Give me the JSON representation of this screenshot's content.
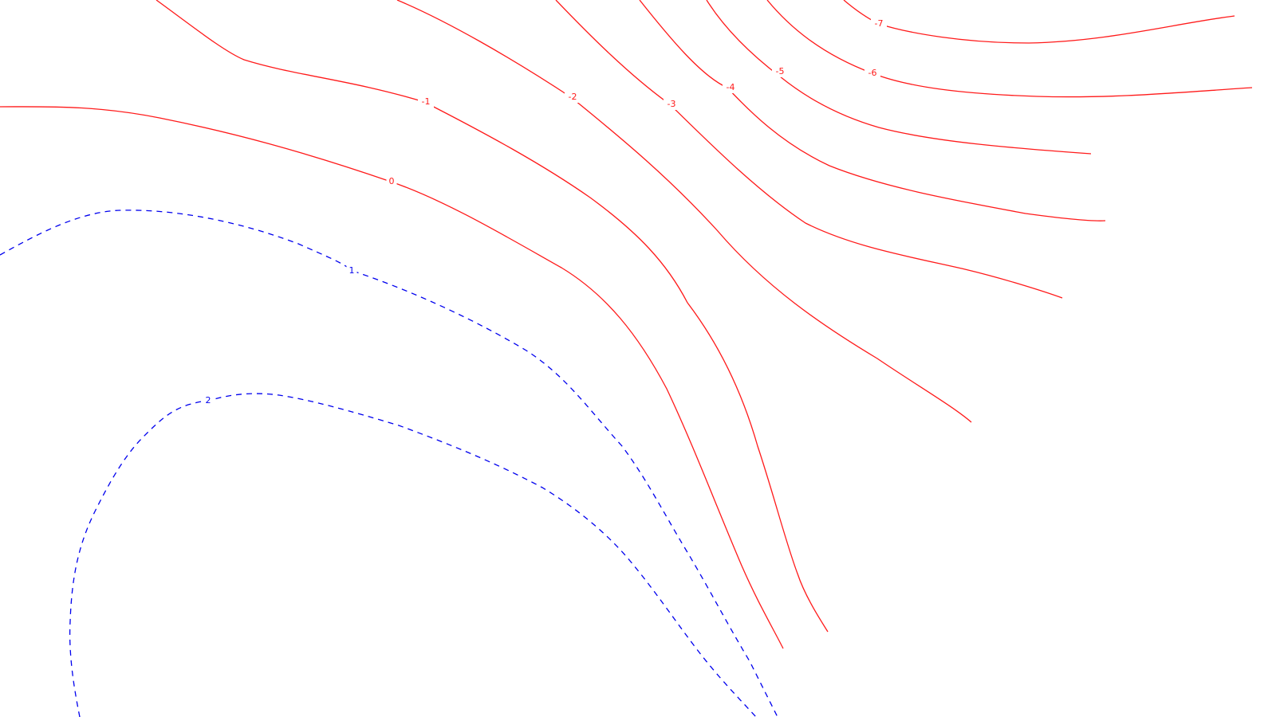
{
  "colors": {
    "background": "#ffffff",
    "negative_contour": "#ff1a1a",
    "positive_contour": "#0000ee"
  },
  "contours": [
    {
      "id": "c-7",
      "level": -7,
      "label": "-7",
      "style": "solid",
      "color_key": "negative_contour"
    },
    {
      "id": "c-6",
      "level": -6,
      "label": "-6",
      "style": "solid",
      "color_key": "negative_contour"
    },
    {
      "id": "c-5",
      "level": -5,
      "label": "-5",
      "style": "solid",
      "color_key": "negative_contour"
    },
    {
      "id": "c-4",
      "level": -4,
      "label": "-4",
      "style": "solid",
      "color_key": "negative_contour"
    },
    {
      "id": "c-3",
      "level": -3,
      "label": "-3",
      "style": "solid",
      "color_key": "negative_contour"
    },
    {
      "id": "c-2",
      "level": -2,
      "label": "-2",
      "style": "solid",
      "color_key": "negative_contour"
    },
    {
      "id": "c-1",
      "level": -1,
      "label": "-1",
      "style": "solid",
      "color_key": "negative_contour"
    },
    {
      "id": "c0",
      "level": 0,
      "label": "0",
      "style": "solid",
      "color_key": "negative_contour"
    },
    {
      "id": "c1",
      "level": 1,
      "label": "1",
      "style": "dashed",
      "color_key": "positive_contour"
    },
    {
      "id": "c2",
      "level": 2,
      "label": "2",
      "style": "dashed",
      "color_key": "positive_contour"
    }
  ]
}
